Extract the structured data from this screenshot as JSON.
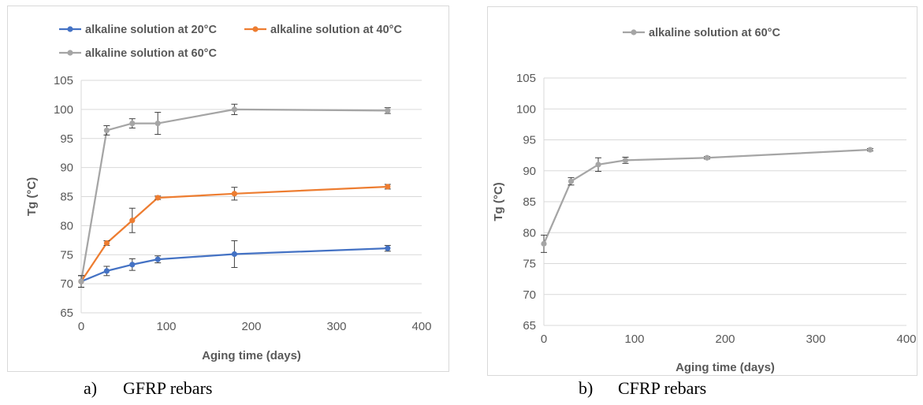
{
  "colors": {
    "series_20": "#4472C4",
    "series_40": "#ED7D31",
    "series_60": "#A5A5A5",
    "grid": "#d9d9d9",
    "axis_text": "#595959"
  },
  "captions": [
    {
      "letter": "a)",
      "text": "GFRP rebars"
    },
    {
      "letter": "b)",
      "text": "CFRP rebars"
    }
  ],
  "chart_data": [
    {
      "type": "line",
      "title": "",
      "xlabel": "Aging time (days)",
      "ylabel": "Tg (°C)",
      "xlim": [
        0,
        400
      ],
      "ylim": [
        65,
        105
      ],
      "xticks": [
        0,
        100,
        200,
        300,
        400
      ],
      "yticks": [
        65,
        70,
        75,
        80,
        85,
        90,
        95,
        100,
        105
      ],
      "grid": true,
      "legend": "top",
      "series": [
        {
          "name": "alkaline solution at 20°C",
          "color": "#4472C4",
          "x": [
            0,
            30,
            60,
            90,
            180,
            360
          ],
          "y": [
            70.4,
            72.2,
            73.3,
            74.2,
            75.1,
            76.1
          ],
          "err": [
            1.0,
            0.8,
            1.0,
            0.6,
            2.3,
            0.5
          ]
        },
        {
          "name": "alkaline solution at 40°C",
          "color": "#ED7D31",
          "x": [
            0,
            30,
            60,
            90,
            180,
            360
          ],
          "y": [
            70.4,
            77.0,
            80.9,
            84.8,
            85.5,
            86.7
          ],
          "err": [
            1.0,
            0.4,
            2.1,
            0.3,
            1.1,
            0.4
          ]
        },
        {
          "name": "alkaline solution at 60°C",
          "color": "#A5A5A5",
          "x": [
            0,
            30,
            60,
            90,
            180,
            360
          ],
          "y": [
            70.4,
            96.4,
            97.6,
            97.6,
            100.0,
            99.8
          ],
          "err": [
            1.0,
            0.8,
            0.8,
            1.9,
            0.9,
            0.5
          ]
        }
      ]
    },
    {
      "type": "line",
      "title": "",
      "xlabel": "Aging time (days)",
      "ylabel": "Tg (°C)",
      "xlim": [
        0,
        400
      ],
      "ylim": [
        65,
        105
      ],
      "xticks": [
        0,
        100,
        200,
        300,
        400
      ],
      "yticks": [
        65,
        70,
        75,
        80,
        85,
        90,
        95,
        100,
        105
      ],
      "grid": true,
      "legend": "top",
      "series": [
        {
          "name": "alkaline solution at 60°C",
          "color": "#A5A5A5",
          "x": [
            0,
            30,
            60,
            90,
            180,
            360
          ],
          "y": [
            78.2,
            88.3,
            91.0,
            91.7,
            92.1,
            93.4
          ],
          "err": [
            1.4,
            0.6,
            1.1,
            0.5,
            0.2,
            0.2
          ]
        }
      ]
    }
  ]
}
